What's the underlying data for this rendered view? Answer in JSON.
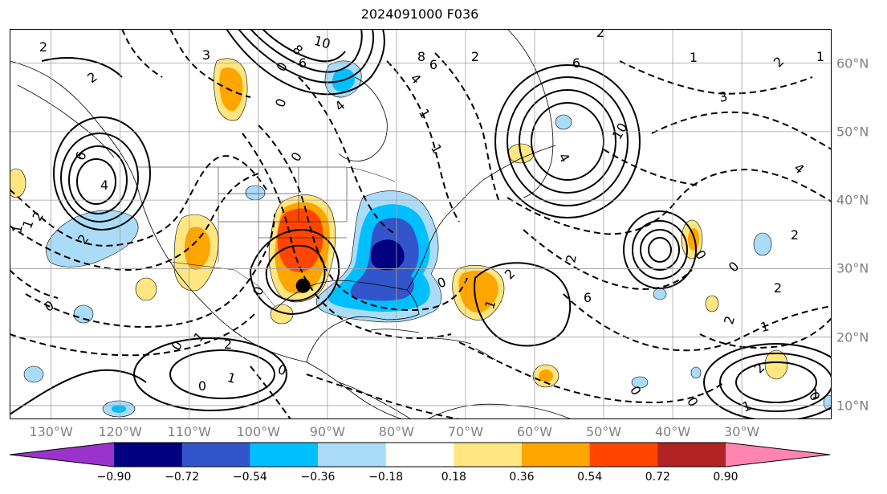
{
  "title": "2024091000 F036",
  "lat_labels": [
    "60°N",
    "50°N",
    "40°N",
    "30°N",
    "20°N",
    "10°N"
  ],
  "lat_values": [
    60,
    50,
    40,
    30,
    20,
    10
  ],
  "lon_labels": [
    "130°W",
    "120°W",
    "110°W",
    "100°W",
    "90°W",
    "80°W",
    "70°W",
    "60°W",
    "50°W",
    "40°W",
    "30°W"
  ],
  "lon_values": [
    -130,
    -120,
    -110,
    -100,
    -90,
    -80,
    -70,
    -60,
    -50,
    -40,
    -30
  ],
  "extent": {
    "lon_min": -136,
    "lon_max": -17,
    "lat_min": 8,
    "lat_max": 65
  },
  "colorbar": {
    "tick_labels": [
      "−0.90",
      "−0.72",
      "−0.54",
      "−0.36",
      "−0.18",
      "0.18",
      "0.36",
      "0.54",
      "0.72",
      "0.90"
    ],
    "colors": [
      "#9933cc",
      "#000080",
      "#3355cc",
      "#00bfff",
      "#aadcf8",
      "#ffffff",
      "#ffe680",
      "#ffa500",
      "#ff4500",
      "#b22222",
      "#ff85b0"
    ]
  },
  "contour_labels": [
    "10",
    "8",
    "6",
    "3",
    "2",
    "2",
    "6",
    "4",
    "1",
    "6",
    "4",
    "2",
    "1",
    "2",
    "8",
    "6",
    "4",
    "0",
    "1",
    "0",
    "2",
    "2",
    "4",
    "2",
    "0",
    "1",
    "0",
    "2",
    "1",
    "0",
    "0",
    "1",
    "2",
    "0",
    "0",
    "1",
    "2",
    "0",
    "0",
    "1",
    "2",
    "0",
    "1",
    "0",
    "2",
    "1",
    "3",
    "10",
    "2",
    "1",
    "0",
    "4",
    "1",
    "2",
    "0",
    "6"
  ],
  "marker": {
    "lon": -93.5,
    "lat": 27.5
  }
}
